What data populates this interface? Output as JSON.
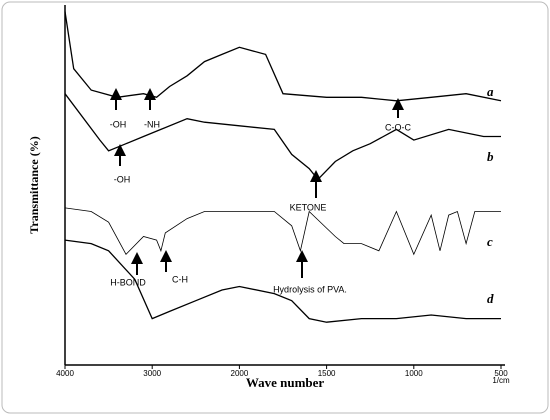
{
  "chart_data": {
    "type": "line",
    "xlabel": "Wave number",
    "ylabel": "Transmittance (%)",
    "xunit": "1/cm",
    "xlim": [
      4000,
      500
    ],
    "xticks": [
      4000,
      3000,
      2000,
      1500,
      1000,
      500
    ],
    "ylim": [
      0,
      100
    ],
    "series": [
      {
        "name": "a",
        "color": "#000000",
        "x": [
          4000,
          3900,
          3700,
          3400,
          3100,
          2950,
          2800,
          2600,
          2400,
          2200,
          2000,
          1850,
          1750,
          1500,
          1300,
          1100,
          900,
          700,
          500
        ],
        "values": [
          99,
          83,
          77,
          75,
          76,
          75,
          78,
          81,
          85,
          87,
          89,
          87,
          76,
          75,
          75,
          74,
          75,
          76,
          74
        ]
      },
      {
        "name": "b",
        "color": "#000000",
        "x": [
          4000,
          3600,
          3500,
          3300,
          3100,
          2900,
          2600,
          2400,
          2000,
          1800,
          1700,
          1600,
          1550,
          1450,
          1350,
          1250,
          1100,
          1000,
          800,
          600,
          500
        ],
        "values": [
          76,
          63,
          60,
          62,
          64,
          66,
          69,
          68,
          67,
          66,
          59,
          55,
          52,
          57,
          60,
          62,
          66,
          63,
          66,
          64,
          64
        ]
      },
      {
        "name": "c",
        "color": "#000000",
        "x": [
          4000,
          3700,
          3500,
          3300,
          3100,
          2950,
          2900,
          2850,
          2600,
          2400,
          2000,
          1800,
          1700,
          1650,
          1600,
          1450,
          1400,
          1300,
          1200,
          1100,
          1000,
          900,
          850,
          800,
          750,
          700,
          650,
          500
        ],
        "values": [
          44,
          43,
          40,
          31,
          36,
          35,
          32,
          37,
          41,
          43,
          43,
          43,
          39,
          32,
          43,
          36,
          34,
          34,
          32,
          43,
          31,
          42,
          32,
          42,
          43,
          34,
          43,
          43
        ]
      },
      {
        "name": "d",
        "color": "#000000",
        "x": [
          4000,
          3700,
          3500,
          3200,
          3000,
          2800,
          2500,
          2200,
          2000,
          1800,
          1700,
          1600,
          1500,
          1300,
          1100,
          900,
          700,
          500
        ],
        "values": [
          35,
          34,
          32,
          24,
          13,
          15,
          18,
          21,
          22,
          20,
          18,
          13,
          12,
          13,
          13,
          14,
          13,
          13
        ]
      }
    ],
    "annotations": [
      "-OH",
      "-NH",
      "C-O-C",
      "-OH",
      "KETONE",
      "H-BOND",
      "C-H",
      "Hydrolysis of PVA."
    ]
  }
}
